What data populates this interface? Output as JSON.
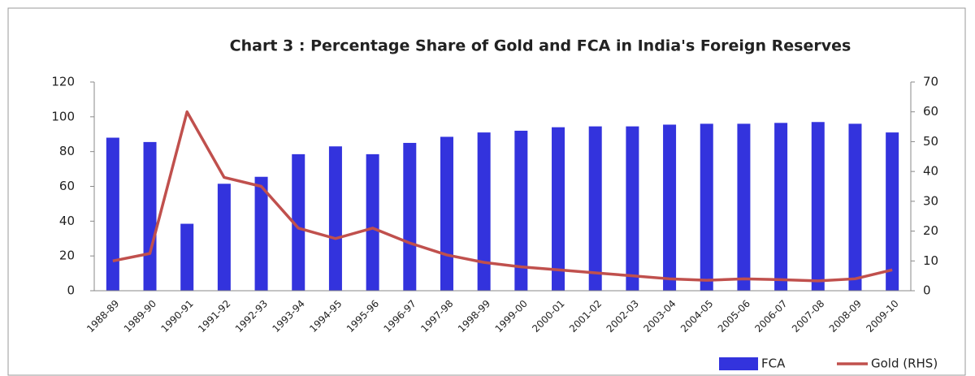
{
  "chart_data": {
    "type": "bar_line",
    "title": "Chart 3 : Percentage  Share of Gold and FCA in India's  Foreign Reserves",
    "categories": [
      "1988-89",
      "1989-90",
      "1990-91",
      "1991-92",
      "1992-93",
      "1993-94",
      "1994-95",
      "1995-96",
      "1996-97",
      "1997-98",
      "1998-99",
      "1999-00",
      "2000-01",
      "2001-02",
      "2002-03",
      "2003-04",
      "2004-05",
      "2005-06",
      "2006-07",
      "2007-08",
      "2008-09",
      "2009-10"
    ],
    "series": [
      {
        "name": "FCA",
        "type": "bar",
        "color": "#3333dd",
        "values": [
          88,
          85.5,
          38.5,
          61.5,
          65.5,
          78.5,
          83,
          78.5,
          85,
          88.5,
          91,
          92,
          94,
          94.5,
          94.5,
          95.5,
          96,
          96,
          96.5,
          97,
          96,
          91
        ]
      },
      {
        "name": "Gold (RHS)",
        "type": "line",
        "axis": "y2",
        "color": "#c0504d",
        "values": [
          10,
          12.5,
          60,
          38,
          35,
          21,
          17.5,
          21,
          16,
          12,
          9.5,
          8,
          7,
          6,
          5,
          4,
          3.5,
          4,
          3.7,
          3.3,
          4,
          7
        ]
      }
    ],
    "ylim": [
      0,
      120
    ],
    "yticks": [
      0,
      20,
      40,
      60,
      80,
      100,
      120
    ],
    "y2lim": [
      0,
      70
    ],
    "y2ticks": [
      0,
      10,
      20,
      30,
      40,
      50,
      60,
      70
    ],
    "legend": "bottom-right"
  }
}
